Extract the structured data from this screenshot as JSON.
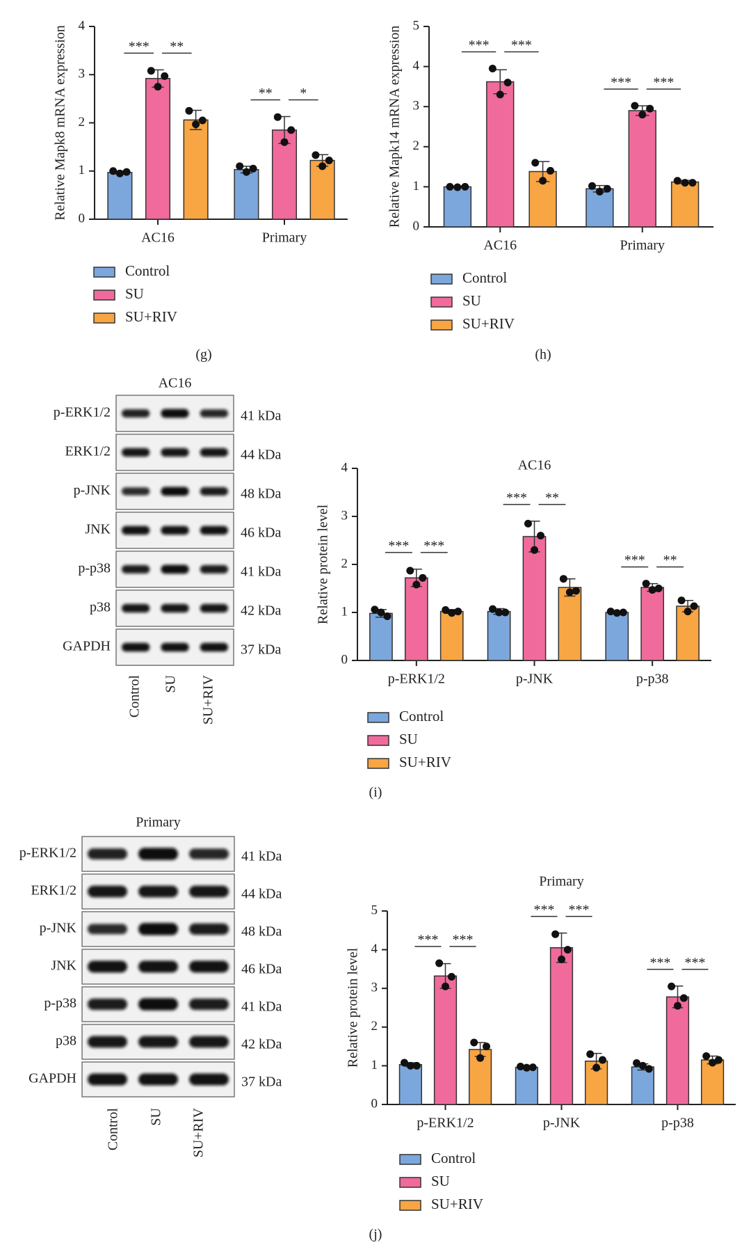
{
  "chart_data": [
    {
      "type": "bar",
      "ylabel": "Relative Mapk8 mRNA expression",
      "categories": [
        "AC16",
        "Primary"
      ],
      "ylim": [
        0,
        4
      ],
      "yticks": [
        0,
        1,
        2,
        3,
        4
      ],
      "series": [
        {
          "name": "Control",
          "color": "#7ba7dd",
          "values": [
            0.97,
            1.03
          ],
          "errors": [
            0.03,
            0.07
          ],
          "points": [
            [
              1.0,
              0.98,
              0.95
            ],
            [
              1.1,
              1.05,
              0.98
            ]
          ]
        },
        {
          "name": "SU",
          "color": "#f06b9b",
          "values": [
            2.92,
            1.85
          ],
          "errors": [
            0.18,
            0.28
          ],
          "points": [
            [
              3.08,
              2.97,
              2.75
            ],
            [
              2.12,
              1.85,
              1.6
            ]
          ]
        },
        {
          "name": "SU+RIV",
          "color": "#f8a544",
          "values": [
            2.06,
            1.22
          ],
          "errors": [
            0.2,
            0.12
          ],
          "points": [
            [
              2.25,
              2.05,
              1.97
            ],
            [
              1.33,
              1.22,
              1.1
            ]
          ]
        }
      ],
      "significance": [
        [
          "***",
          "**"
        ],
        [
          "**",
          "*"
        ]
      ]
    },
    {
      "type": "bar",
      "ylabel": "Relative Mapk14 mRNA expression",
      "categories": [
        "AC16",
        "Primary"
      ],
      "ylim": [
        0,
        5
      ],
      "yticks": [
        0,
        1,
        2,
        3,
        4,
        5
      ],
      "series": [
        {
          "name": "Control",
          "color": "#7ba7dd",
          "values": [
            1.0,
            0.95
          ],
          "errors": [
            0.02,
            0.08
          ],
          "points": [
            [
              1.0,
              1.0,
              0.99
            ],
            [
              1.02,
              0.95,
              0.88
            ]
          ]
        },
        {
          "name": "SU",
          "color": "#f06b9b",
          "values": [
            3.62,
            2.9
          ],
          "errors": [
            0.3,
            0.12
          ],
          "points": [
            [
              3.95,
              3.6,
              3.3
            ],
            [
              3.02,
              2.95,
              2.8
            ]
          ]
        },
        {
          "name": "SU+RIV",
          "color": "#f8a544",
          "values": [
            1.38,
            1.12
          ],
          "errors": [
            0.25,
            0.04
          ],
          "points": [
            [
              1.6,
              1.4,
              1.15
            ],
            [
              1.15,
              1.1,
              1.1
            ]
          ]
        }
      ],
      "significance": [
        [
          "***",
          "***"
        ],
        [
          "***",
          "***"
        ]
      ]
    },
    {
      "type": "bar",
      "title": "AC16",
      "ylabel": "Relative protein level",
      "categories": [
        "p-ERK1/2",
        "p-JNK",
        "p-p38"
      ],
      "ylim": [
        0,
        4
      ],
      "yticks": [
        0,
        1,
        2,
        3,
        4
      ],
      "series": [
        {
          "name": "Control",
          "color": "#7ba7dd",
          "values": [
            0.98,
            1.02,
            1.0
          ],
          "errors": [
            0.08,
            0.06,
            0.02
          ],
          "points": [
            [
              1.06,
              0.92,
              1.0
            ],
            [
              1.07,
              1.0,
              1.0
            ],
            [
              1.02,
              1.0,
              0.99
            ]
          ]
        },
        {
          "name": "SU",
          "color": "#f06b9b",
          "values": [
            1.72,
            2.58,
            1.52
          ],
          "errors": [
            0.18,
            0.32,
            0.08
          ],
          "points": [
            [
              1.87,
              1.72,
              1.58
            ],
            [
              2.85,
              2.6,
              2.3
            ],
            [
              1.6,
              1.5,
              1.47
            ]
          ]
        },
        {
          "name": "SU+RIV",
          "color": "#f8a544",
          "values": [
            1.02,
            1.52,
            1.13
          ],
          "errors": [
            0.04,
            0.18,
            0.12
          ],
          "points": [
            [
              1.05,
              1.02,
              0.99
            ],
            [
              1.7,
              1.45,
              1.42
            ],
            [
              1.25,
              1.13,
              1.02
            ]
          ]
        }
      ],
      "significance": [
        [
          "***",
          "***"
        ],
        [
          "***",
          "**"
        ],
        [
          "***",
          "**"
        ]
      ]
    },
    {
      "type": "bar",
      "title": "Primary",
      "ylabel": "Relative protein level",
      "categories": [
        "p-ERK1/2",
        "p-JNK",
        "p-p38"
      ],
      "ylim": [
        0,
        5
      ],
      "yticks": [
        0,
        1,
        2,
        3,
        4,
        5
      ],
      "series": [
        {
          "name": "Control",
          "color": "#7ba7dd",
          "values": [
            1.03,
            0.96,
            0.97
          ],
          "errors": [
            0.05,
            0.03,
            0.08
          ],
          "points": [
            [
              1.08,
              1.0,
              1.0
            ],
            [
              0.98,
              0.96,
              0.95
            ],
            [
              1.07,
              0.92,
              1.0
            ]
          ]
        },
        {
          "name": "SU",
          "color": "#f06b9b",
          "values": [
            3.32,
            4.05,
            2.78
          ],
          "errors": [
            0.32,
            0.38,
            0.28
          ],
          "points": [
            [
              3.65,
              3.3,
              3.05
            ],
            [
              4.4,
              4.0,
              3.75
            ],
            [
              3.05,
              2.75,
              2.55
            ]
          ]
        },
        {
          "name": "SU+RIV",
          "color": "#f8a544",
          "values": [
            1.42,
            1.12,
            1.15
          ],
          "errors": [
            0.18,
            0.2,
            0.1
          ],
          "points": [
            [
              1.6,
              1.5,
              1.2
            ],
            [
              1.3,
              1.15,
              0.95
            ],
            [
              1.25,
              1.15,
              1.08
            ]
          ]
        }
      ],
      "significance": [
        [
          "***",
          "***"
        ],
        [
          "***",
          "***"
        ],
        [
          "***",
          "***"
        ]
      ]
    }
  ],
  "panels": [
    "(g)",
    "(h)",
    "(i)",
    "(j)"
  ],
  "blots": [
    {
      "title": "AC16",
      "lanes": [
        "Control",
        "SU",
        "SU+RIV"
      ],
      "rows": [
        {
          "label": "p-ERK1/2",
          "size": "41 kDa"
        },
        {
          "label": "ERK1/2",
          "size": "44 kDa"
        },
        {
          "label": "p-JNK",
          "size": "48 kDa"
        },
        {
          "label": "JNK",
          "size": "46 kDa"
        },
        {
          "label": "p-p38",
          "size": "41 kDa"
        },
        {
          "label": "p38",
          "size": "42 kDa"
        },
        {
          "label": "GAPDH",
          "size": "37 kDa"
        }
      ]
    },
    {
      "title": "Primary",
      "lanes": [
        "Control",
        "SU",
        "SU+RIV"
      ],
      "rows": [
        {
          "label": "p-ERK1/2",
          "size": "41 kDa"
        },
        {
          "label": "ERK1/2",
          "size": "44 kDa"
        },
        {
          "label": "p-JNK",
          "size": "48 kDa"
        },
        {
          "label": "JNK",
          "size": "46 kDa"
        },
        {
          "label": "p-p38",
          "size": "41 kDa"
        },
        {
          "label": "p38",
          "size": "42 kDa"
        },
        {
          "label": "GAPDH",
          "size": "37 kDa"
        }
      ]
    }
  ]
}
